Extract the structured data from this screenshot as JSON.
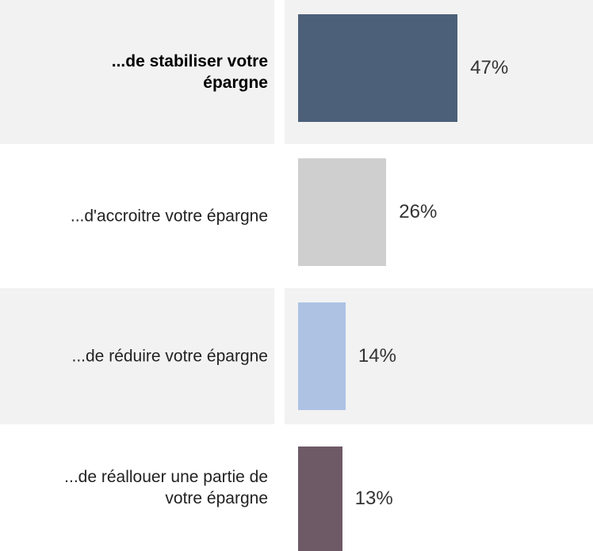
{
  "chart_data": {
    "type": "bar",
    "orientation": "horizontal",
    "categories": [
      "...de stabiliser votre épargne",
      "...d'accroitre votre épargne",
      "...de réduire votre épargne",
      "...de réallouer une partie de votre épargne"
    ],
    "values": [
      47,
      26,
      14,
      13
    ],
    "value_labels": [
      "47%",
      "26%",
      "14%",
      "13%"
    ],
    "colors": [
      "#4d6079",
      "#d0cfd0",
      "#aec2e4",
      "#6e5a66"
    ],
    "xlim": [
      0,
      100
    ]
  }
}
